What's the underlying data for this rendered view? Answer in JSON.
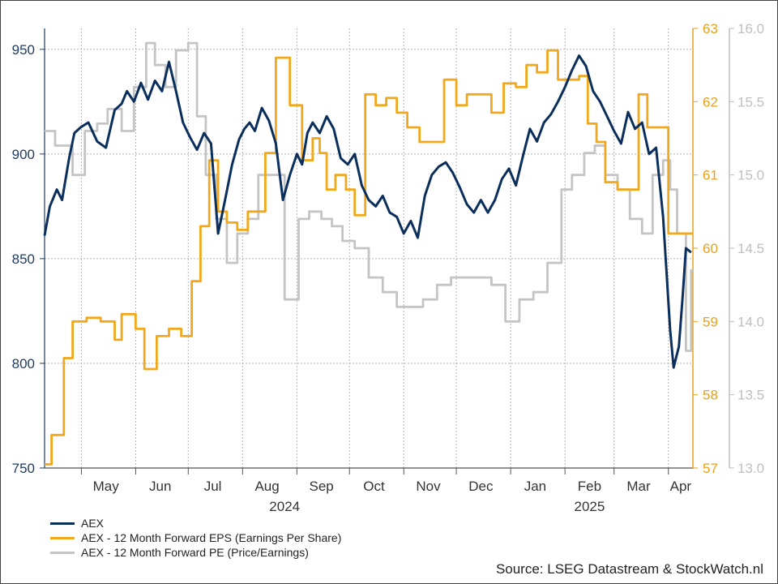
{
  "chart_data": {
    "type": "line",
    "title": "",
    "colors": {
      "aex": "#0b2f5c",
      "eps": "#f2a81d",
      "pe": "#c4c4c4"
    },
    "axes": {
      "left": {
        "min": 750,
        "max": 960,
        "ticks": [
          "750",
          "800",
          "850",
          "900",
          "950"
        ],
        "tick_values": [
          750,
          800,
          850,
          900,
          950
        ],
        "color": "#1f3a5f"
      },
      "right1": {
        "min": 57,
        "max": 63,
        "ticks": [
          "57",
          "58",
          "59",
          "60",
          "61",
          "62",
          "63"
        ],
        "tick_values": [
          57,
          58,
          59,
          60,
          61,
          62,
          63
        ],
        "color": "#e8a01e"
      },
      "right2": {
        "min": 13.0,
        "max": 16.0,
        "ticks": [
          "13.0",
          "13.5",
          "14.0",
          "14.5",
          "15.0",
          "15.5",
          "16.0"
        ],
        "tick_values": [
          13.0,
          13.5,
          14.0,
          14.5,
          15.0,
          15.5,
          16.0
        ],
        "color": "#bdbdbd"
      }
    },
    "x_range": [
      "2024-04-10",
      "2025-04-15"
    ],
    "month_labels": [
      {
        "label": "May",
        "date": "2024-05-15"
      },
      {
        "label": "Jun",
        "date": "2024-06-15"
      },
      {
        "label": "Jul",
        "date": "2024-07-15"
      },
      {
        "label": "Aug",
        "date": "2024-08-15"
      },
      {
        "label": "Sep",
        "date": "2024-09-15"
      },
      {
        "label": "Oct",
        "date": "2024-10-15"
      },
      {
        "label": "Nov",
        "date": "2024-11-15"
      },
      {
        "label": "Dec",
        "date": "2024-12-15"
      },
      {
        "label": "Jan",
        "date": "2025-01-15"
      },
      {
        "label": "Feb",
        "date": "2025-02-15"
      },
      {
        "label": "Mar",
        "date": "2025-03-15"
      },
      {
        "label": "Apr",
        "date": "2025-04-08"
      }
    ],
    "month_starts": [
      "2024-05-01",
      "2024-06-01",
      "2024-07-01",
      "2024-08-01",
      "2024-09-01",
      "2024-10-01",
      "2024-11-01",
      "2024-12-01",
      "2025-01-01",
      "2025-02-01",
      "2025-03-01",
      "2025-04-01"
    ],
    "years": [
      {
        "label": "2024",
        "date": "2024-08-25"
      },
      {
        "label": "2025",
        "date": "2025-02-15"
      }
    ],
    "series": [
      {
        "name": "AEX",
        "axis": "left",
        "x": [
          "2024-04-10",
          "2024-04-13",
          "2024-04-17",
          "2024-04-20",
          "2024-04-24",
          "2024-04-27",
          "2024-05-01",
          "2024-05-05",
          "2024-05-10",
          "2024-05-15",
          "2024-05-20",
          "2024-05-24",
          "2024-05-27",
          "2024-05-31",
          "2024-06-04",
          "2024-06-08",
          "2024-06-12",
          "2024-06-16",
          "2024-06-20",
          "2024-06-24",
          "2024-06-28",
          "2024-07-02",
          "2024-07-06",
          "2024-07-10",
          "2024-07-14",
          "2024-07-18",
          "2024-07-22",
          "2024-07-26",
          "2024-07-30",
          "2024-08-02",
          "2024-08-05",
          "2024-08-08",
          "2024-08-12",
          "2024-08-16",
          "2024-08-20",
          "2024-08-24",
          "2024-08-28",
          "2024-09-01",
          "2024-09-04",
          "2024-09-07",
          "2024-09-10",
          "2024-09-14",
          "2024-09-18",
          "2024-09-22",
          "2024-09-26",
          "2024-09-30",
          "2024-10-04",
          "2024-10-08",
          "2024-10-12",
          "2024-10-16",
          "2024-10-20",
          "2024-10-24",
          "2024-10-28",
          "2024-11-01",
          "2024-11-05",
          "2024-11-09",
          "2024-11-13",
          "2024-11-17",
          "2024-11-21",
          "2024-11-25",
          "2024-11-29",
          "2024-12-03",
          "2024-12-07",
          "2024-12-11",
          "2024-12-15",
          "2024-12-19",
          "2024-12-23",
          "2024-12-27",
          "2024-12-31",
          "2025-01-04",
          "2025-01-08",
          "2025-01-12",
          "2025-01-16",
          "2025-01-20",
          "2025-01-24",
          "2025-01-28",
          "2025-02-01",
          "2025-02-05",
          "2025-02-09",
          "2025-02-13",
          "2025-02-17",
          "2025-02-21",
          "2025-02-25",
          "2025-03-01",
          "2025-03-05",
          "2025-03-09",
          "2025-03-13",
          "2025-03-17",
          "2025-03-21",
          "2025-03-25",
          "2025-03-29",
          "2025-04-02",
          "2025-04-04",
          "2025-04-07",
          "2025-04-09",
          "2025-04-11",
          "2025-04-14"
        ],
        "values": [
          861,
          875,
          883,
          878,
          898,
          910,
          913,
          915,
          906,
          903,
          921,
          924,
          930,
          925,
          934,
          926,
          935,
          930,
          944,
          930,
          915,
          908,
          902,
          910,
          905,
          862,
          878,
          895,
          907,
          912,
          915,
          911,
          922,
          916,
          905,
          878,
          890,
          900,
          895,
          910,
          915,
          910,
          918,
          912,
          898,
          895,
          900,
          885,
          878,
          875,
          880,
          872,
          870,
          862,
          868,
          860,
          880,
          890,
          894,
          896,
          891,
          884,
          876,
          872,
          878,
          872,
          878,
          888,
          893,
          885,
          899,
          912,
          906,
          915,
          919,
          925,
          932,
          940,
          947,
          942,
          930,
          925,
          918,
          911,
          905,
          920,
          912,
          915,
          900,
          903,
          870,
          816,
          798,
          808,
          830,
          855,
          853
        ]
      },
      {
        "name": "AEX - 12 Month Forward EPS (Earnings Per Share)",
        "axis": "right1",
        "x": [
          "2024-04-10",
          "2024-04-14",
          "2024-04-21",
          "2024-04-26",
          "2024-05-04",
          "2024-05-12",
          "2024-05-20",
          "2024-05-24",
          "2024-06-01",
          "2024-06-06",
          "2024-06-13",
          "2024-06-20",
          "2024-06-27",
          "2024-07-03",
          "2024-07-08",
          "2024-07-13",
          "2024-07-18",
          "2024-07-23",
          "2024-07-29",
          "2024-08-04",
          "2024-08-14",
          "2024-08-20",
          "2024-08-28",
          "2024-09-04",
          "2024-09-10",
          "2024-09-14",
          "2024-09-18",
          "2024-09-23",
          "2024-09-29",
          "2024-10-04",
          "2024-10-10",
          "2024-10-16",
          "2024-10-22",
          "2024-10-28",
          "2024-11-03",
          "2024-11-10",
          "2024-11-17",
          "2024-11-24",
          "2024-12-01",
          "2024-12-07",
          "2024-12-14",
          "2024-12-21",
          "2024-12-28",
          "2025-01-04",
          "2025-01-10",
          "2025-01-16",
          "2025-01-22",
          "2025-01-28",
          "2025-02-03",
          "2025-02-09",
          "2025-02-14",
          "2025-02-19",
          "2025-02-24",
          "2025-03-03",
          "2025-03-10",
          "2025-03-15",
          "2025-03-20",
          "2025-03-26",
          "2025-04-01",
          "2025-04-04",
          "2025-04-09",
          "2025-04-14"
        ],
        "values": [
          57.05,
          57.45,
          58.5,
          59.0,
          59.05,
          59.0,
          58.75,
          59.1,
          58.9,
          58.35,
          58.8,
          58.9,
          58.8,
          59.55,
          60.3,
          61.2,
          60.5,
          60.35,
          60.25,
          60.5,
          61.3,
          62.6,
          61.95,
          61.2,
          61.5,
          61.3,
          60.8,
          61.0,
          60.8,
          60.45,
          62.1,
          61.95,
          62.05,
          61.85,
          61.65,
          61.45,
          61.45,
          62.3,
          61.95,
          62.1,
          62.1,
          61.85,
          62.25,
          62.2,
          62.5,
          62.4,
          62.7,
          62.3,
          62.3,
          62.35,
          61.7,
          61.45,
          60.9,
          60.8,
          60.8,
          62.1,
          61.65,
          61.65,
          60.2,
          60.2,
          60.2,
          60.2
        ]
      },
      {
        "name": "AEX - 12 Month Forward PE (Price/Earnings)",
        "axis": "right2",
        "x": [
          "2024-04-10",
          "2024-04-16",
          "2024-04-26",
          "2024-05-03",
          "2024-05-10",
          "2024-05-16",
          "2024-05-24",
          "2024-05-31",
          "2024-06-07",
          "2024-06-12",
          "2024-06-18",
          "2024-06-24",
          "2024-07-01",
          "2024-07-06",
          "2024-07-11",
          "2024-07-17",
          "2024-07-23",
          "2024-07-29",
          "2024-08-04",
          "2024-08-10",
          "2024-08-17",
          "2024-08-25",
          "2024-09-02",
          "2024-09-08",
          "2024-09-15",
          "2024-09-21",
          "2024-09-27",
          "2024-10-04",
          "2024-10-12",
          "2024-10-20",
          "2024-10-28",
          "2024-11-04",
          "2024-11-12",
          "2024-11-20",
          "2024-11-28",
          "2024-12-05",
          "2024-12-13",
          "2024-12-21",
          "2024-12-29",
          "2025-01-06",
          "2025-01-14",
          "2025-01-22",
          "2025-01-30",
          "2025-02-05",
          "2025-02-12",
          "2025-02-18",
          "2025-02-24",
          "2025-03-03",
          "2025-03-10",
          "2025-03-17",
          "2025-03-23",
          "2025-03-29",
          "2025-04-02",
          "2025-04-06",
          "2025-04-11",
          "2025-04-14"
        ],
        "values": [
          15.3,
          15.2,
          15.0,
          15.3,
          15.35,
          15.45,
          15.3,
          15.6,
          15.9,
          15.75,
          15.6,
          15.85,
          15.9,
          15.4,
          15.0,
          14.7,
          14.4,
          14.6,
          14.7,
          15.0,
          15.0,
          14.15,
          14.7,
          14.75,
          14.7,
          14.65,
          14.55,
          14.5,
          14.3,
          14.2,
          14.1,
          14.1,
          14.15,
          14.25,
          14.3,
          14.3,
          14.3,
          14.25,
          14.0,
          14.15,
          14.2,
          14.4,
          14.9,
          15.0,
          15.15,
          15.2,
          15.0,
          14.9,
          14.7,
          14.6,
          15.0,
          15.1,
          14.9,
          14.6,
          13.8,
          14.35
        ]
      }
    ]
  },
  "legend": {
    "items": [
      {
        "label": "AEX",
        "color": "#0b2f5c"
      },
      {
        "label": "AEX - 12 Month Forward EPS (Earnings Per Share)",
        "color": "#f2a81d"
      },
      {
        "label": "AEX - 12 Month Forward PE (Price/Earnings)",
        "color": "#c4c4c4"
      }
    ]
  },
  "footer": {
    "source": "Source: LSEG Datastream & StockWatch.nl"
  }
}
